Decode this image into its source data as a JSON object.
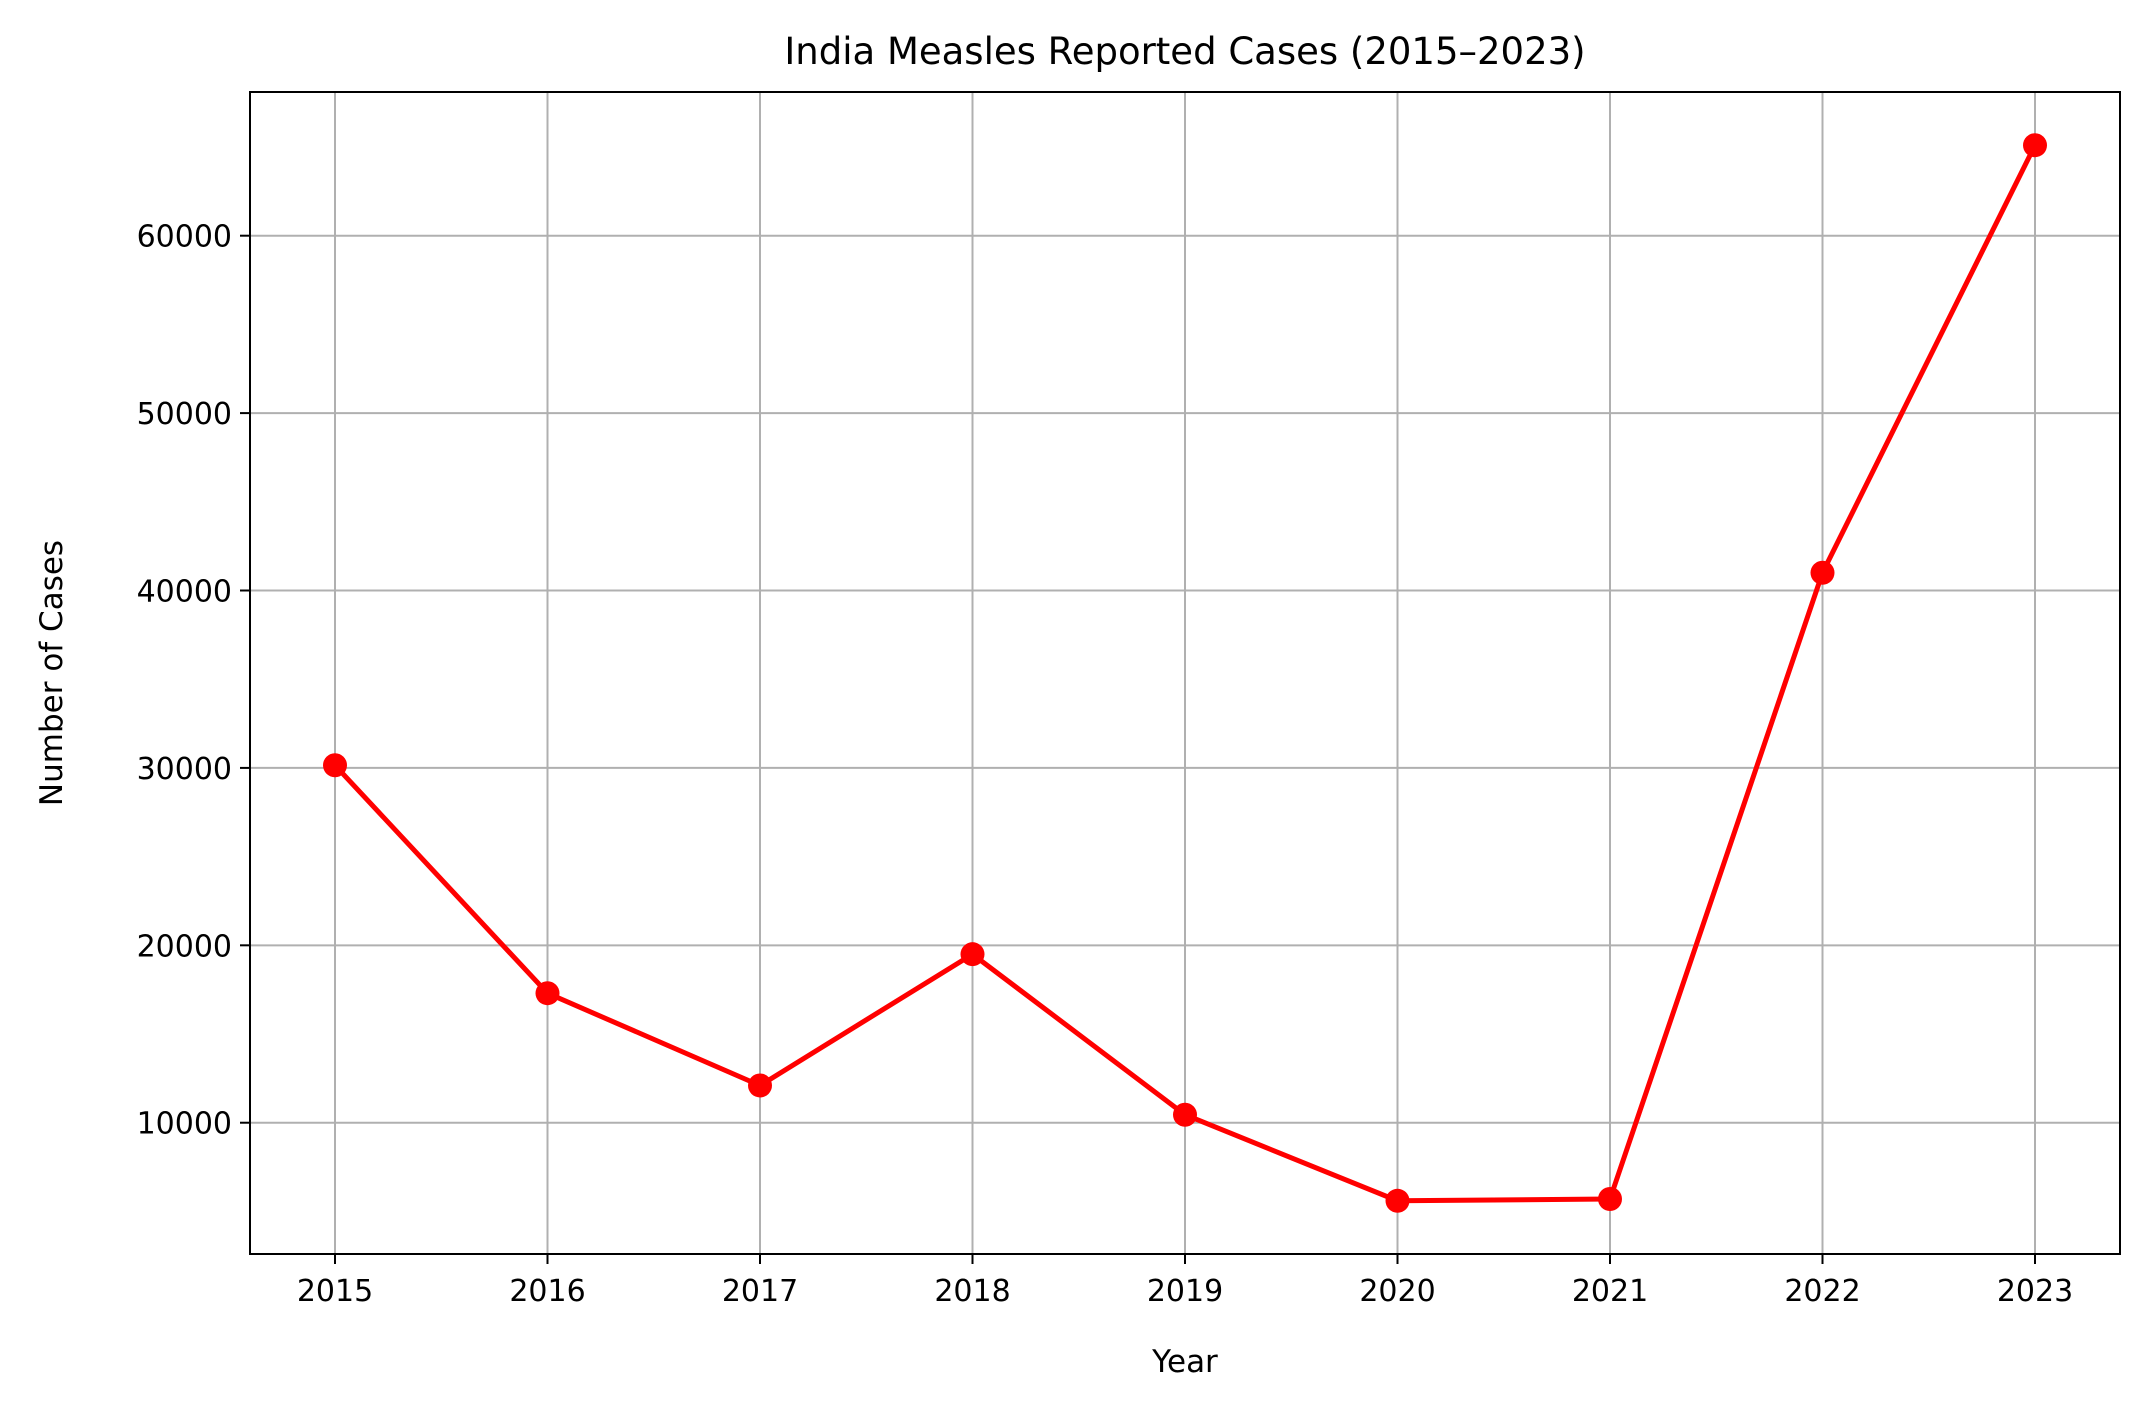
{
  "chart_data": {
    "type": "line",
    "title": "India Measles Reported Cases (2015–2023)",
    "xlabel": "Year",
    "ylabel": "Number of Cases",
    "x": [
      2015,
      2016,
      2017,
      2018,
      2019,
      2020,
      2021,
      2022,
      2023
    ],
    "x_tick_labels": [
      "2015",
      "2016",
      "2017",
      "2018",
      "2019",
      "2020",
      "2021",
      "2022",
      "2023"
    ],
    "series": [
      {
        "values": [
          30150,
          17300,
          12100,
          19500,
          10450,
          5600,
          5700,
          41000,
          65100
        ]
      }
    ],
    "y_ticks": [
      10000,
      20000,
      30000,
      40000,
      50000,
      60000
    ],
    "y_tick_labels": [
      "10000",
      "20000",
      "30000",
      "40000",
      "50000",
      "60000"
    ],
    "xlim": [
      2014.6,
      2023.4
    ],
    "ylim": [
      2600,
      68100
    ],
    "grid": true,
    "legend": "none",
    "colors": {
      "line": "#ff0000",
      "grid": "#b0b0b0",
      "axes": "#000000"
    }
  }
}
